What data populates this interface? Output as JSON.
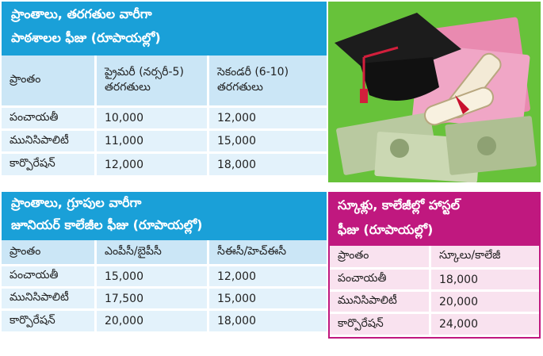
{
  "school_fees": {
    "title_line1": "ప్రాంతాలు, తరగతుల వారీగా",
    "title_line2": "పాఠశాలల ఫీజు (రూపాయల్లో)",
    "columns": [
      "ప్రాంతం",
      "ప్రైమరీ (నర్సరీ-5) తరగతులు",
      "సెకండరీ (6-10) తరగతులు"
    ],
    "rows": [
      [
        "పంచాయతీ",
        "10,000",
        "12,000"
      ],
      [
        "మునిసిపాలిటీ",
        "11,000",
        "15,000"
      ],
      [
        "కార్పొరేషన్",
        "12,000",
        "18,000"
      ]
    ]
  },
  "college_fees": {
    "title_line1": "ప్రాంతాలు, గ్రూపుల వారీగా",
    "title_line2": "జూనియర్ కాలేజీల ఫీజు (రూపాయల్లో)",
    "columns": [
      "ప్రాంతం",
      "ఎంపీసీ/బైపీసీ",
      "సీఈసీ/హెచ్ఈసీ"
    ],
    "rows": [
      [
        "పంచాయతీ",
        "15,000",
        "12,000"
      ],
      [
        "మునిసిపాలిటీ",
        "17,500",
        "15,000"
      ],
      [
        "కార్పొరేషన్",
        "20,000",
        "18,000"
      ]
    ]
  },
  "hostel_fees": {
    "title_line1": "స్కూళ్లు, కాలేజీల్లో హాస్టల్",
    "title_line2": "ఫీజు (రూపాయల్లో)",
    "columns": [
      "ప్రాంతం",
      "స్కూలు/కాలేజీ"
    ],
    "rows": [
      [
        "పంచాయతీ",
        "18,000"
      ],
      [
        "మునిసిపాలిటీ",
        "20,000"
      ],
      [
        "కార్పొరేషన్",
        "24,000"
      ]
    ]
  },
  "colors": {
    "header_blue": "#1aa0d8",
    "header_pink": "#c0187f",
    "photo_background": "#67c23a"
  },
  "illustration": [
    "graduation-cap-icon",
    "diploma-scroll-icon",
    "currency-notes-icon"
  ]
}
